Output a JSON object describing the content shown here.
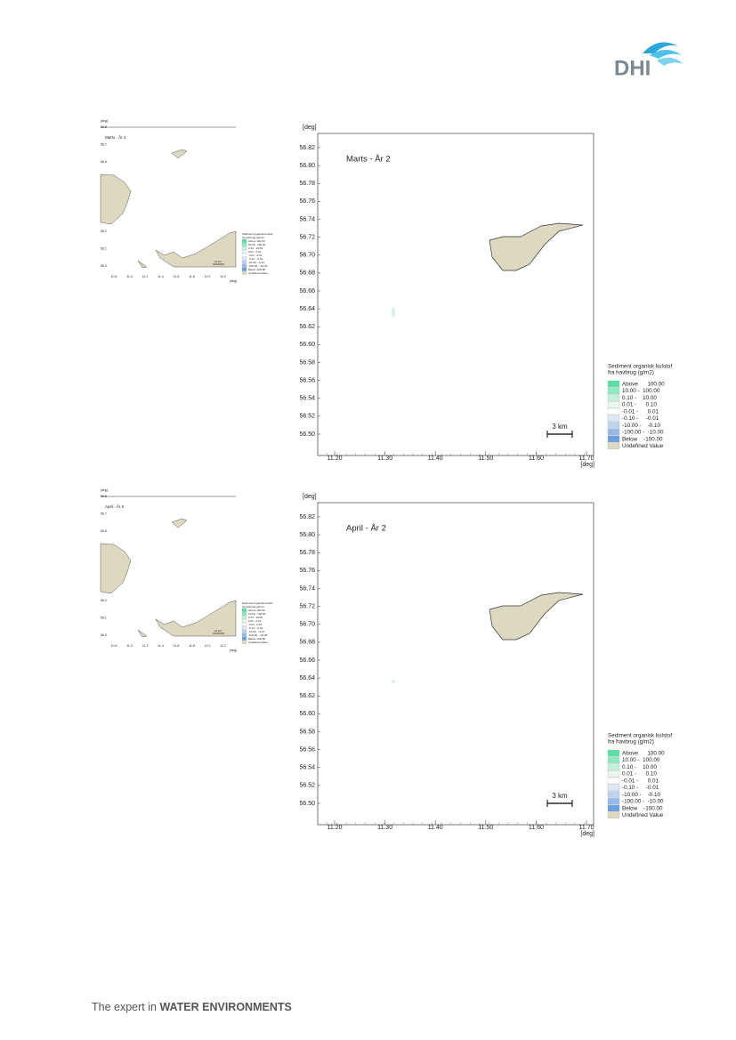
{
  "header": {
    "logo": "DHI"
  },
  "axis": {
    "y_unit": "[deg]",
    "x_unit": "[deg]",
    "yticks": [
      "56.82",
      "56.80",
      "56.78",
      "56.76",
      "56.74",
      "56.72",
      "56.70",
      "56.68",
      "56.66",
      "56.64",
      "56.62",
      "56.60",
      "56.58",
      "56.56",
      "56.54",
      "56.52",
      "56.50"
    ],
    "xticks": [
      "11.20",
      "11.30",
      "11.40",
      "11.50",
      "11.60",
      "11.70"
    ]
  },
  "overview": {
    "yticks": [
      "56.8",
      "56.7",
      "56.6",
      "56.5",
      "56.4",
      "56.3",
      "56.2",
      "56.1",
      "56.0"
    ],
    "xticks": [
      "10.8",
      "11.0",
      "11.2",
      "11.4",
      "11.6",
      "11.8",
      "12.0",
      "12.2"
    ],
    "scale": "10 km"
  },
  "legend": {
    "title": [
      "Sediment organisk kulstof",
      "fra havbrug (g/m2)"
    ],
    "items": [
      {
        "label": "Above      100.00",
        "color": "#55e2a4"
      },
      {
        "label": "10.00 -  100.00",
        "color": "#8ee9c1"
      },
      {
        "label": "0.10 -    10.00",
        "color": "#c4f1dc"
      },
      {
        "label": "0.01 -      0.10",
        "color": "#e8f8ef"
      },
      {
        "label": "-0.01 -      0.01",
        "color": "#ffffff"
      },
      {
        "label": "-0.10 -     -0.01",
        "color": "#dce8f6"
      },
      {
        "label": "-10.00 -    -0.10",
        "color": "#bcd3ef"
      },
      {
        "label": "-100.00 -  -10.00",
        "color": "#97b9e9"
      },
      {
        "label": "Below    -100.00",
        "color": "#6b9fe1"
      },
      {
        "label": "Undefined Value",
        "color": "#ddd8c0"
      }
    ]
  },
  "scale_bar": "3 km",
  "figures": [
    {
      "title": "Marts - År 2"
    },
    {
      "title": "April - År 2"
    }
  ],
  "footer": {
    "text": "The expert in",
    "emphasis": "WATER ENVIRONMENTS"
  }
}
